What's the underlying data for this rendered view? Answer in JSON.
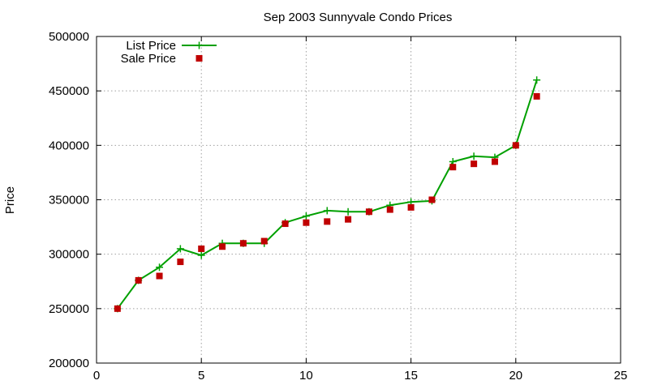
{
  "chart_data": {
    "type": "line",
    "title": "Sep 2003 Sunnyvale Condo Prices",
    "xlabel": "",
    "ylabel": "Price",
    "xlim": [
      0,
      25
    ],
    "ylim": [
      200000,
      500000
    ],
    "xticks": [
      0,
      5,
      10,
      15,
      20,
      25
    ],
    "yticks": [
      200000,
      250000,
      300000,
      350000,
      400000,
      450000,
      500000
    ],
    "grid": true,
    "legend_position": "top-left",
    "series": [
      {
        "name": "List Price",
        "style": "line-plus",
        "color": "#00a000",
        "x": [
          1,
          2,
          3,
          4,
          5,
          6,
          7,
          8,
          9,
          10,
          11,
          12,
          13,
          14,
          15,
          16,
          17,
          18,
          19,
          20,
          21
        ],
        "values": [
          250000,
          276000,
          288000,
          305000,
          299000,
          310000,
          310000,
          310000,
          329000,
          335000,
          340000,
          339000,
          339000,
          345000,
          348000,
          349000,
          385000,
          390000,
          389000,
          400000,
          460000
        ]
      },
      {
        "name": "Sale Price",
        "style": "square-points",
        "color": "#c00000",
        "x": [
          1,
          2,
          3,
          4,
          5,
          6,
          7,
          8,
          9,
          10,
          11,
          12,
          13,
          14,
          15,
          16,
          17,
          18,
          19,
          20,
          21
        ],
        "values": [
          250000,
          276000,
          280000,
          293000,
          305000,
          307000,
          310000,
          312000,
          328000,
          329000,
          330000,
          332000,
          339000,
          341000,
          343000,
          350000,
          380000,
          383000,
          385000,
          400000,
          445000
        ]
      }
    ]
  }
}
